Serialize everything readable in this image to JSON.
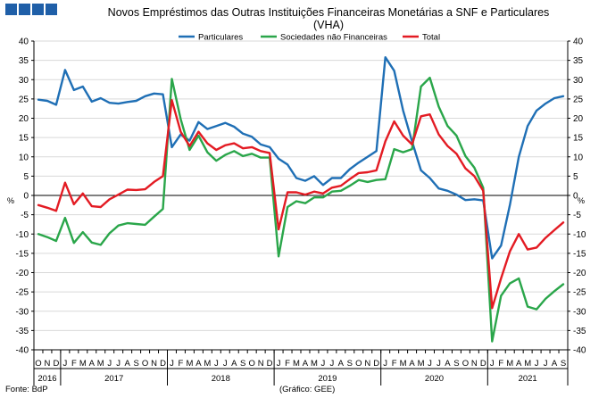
{
  "header_blocks": [
    "",
    "",
    "",
    ""
  ],
  "title_line1": "Novos Empréstimos das Outras Instituições Financeiras Monetárias a SNF e Particulares",
  "title_line2": "(VHA)",
  "footer": {
    "source": "Fonte: BdP",
    "credit": "(Gráfico: GEE)"
  },
  "colors": {
    "header": "#1f5fa8",
    "particulares": "#1f6fb5",
    "snf": "#2aa64a",
    "total": "#e31b23",
    "grid": "#d9d9d9"
  },
  "chart_data": {
    "type": "line",
    "title": "Novos Empréstimos das Outras Instituições Financeiras Monetárias a SNF e Particulares (VHA)",
    "ylabel_left": "%",
    "ylabel_right": "%",
    "ylim": [
      -40,
      40
    ],
    "yticks": [
      -40,
      -35,
      -30,
      -25,
      -20,
      -15,
      -10,
      -5,
      0,
      5,
      10,
      15,
      20,
      25,
      30,
      35,
      40
    ],
    "legend_position": "top-center",
    "month_labels": [
      "O",
      "N",
      "D",
      "J",
      "F",
      "M",
      "A",
      "M",
      "J",
      "J",
      "A",
      "S",
      "O",
      "N",
      "D",
      "J",
      "F",
      "M",
      "A",
      "M",
      "J",
      "J",
      "A",
      "S",
      "O",
      "N",
      "D",
      "J",
      "F",
      "M",
      "A",
      "M",
      "J",
      "J",
      "A",
      "S",
      "O",
      "N",
      "D",
      "J",
      "F",
      "M",
      "A",
      "M",
      "J",
      "J",
      "A",
      "S",
      "O",
      "N",
      "D",
      "J",
      "F",
      "M",
      "A",
      "M",
      "J",
      "J",
      "A",
      "S"
    ],
    "years": [
      {
        "label": "2016",
        "start": 0,
        "end": 3
      },
      {
        "label": "2017",
        "start": 3,
        "end": 15
      },
      {
        "label": "2018",
        "start": 15,
        "end": 27
      },
      {
        "label": "2019",
        "start": 27,
        "end": 39
      },
      {
        "label": "2020",
        "start": 39,
        "end": 51
      },
      {
        "label": "2021",
        "start": 51,
        "end": 60
      }
    ],
    "series": [
      {
        "name": "Particulares",
        "values": [
          24.8,
          24.5,
          23.5,
          32.5,
          27.3,
          28.2,
          24.3,
          25.2,
          24.0,
          23.8,
          24.2,
          24.5,
          25.7,
          26.4,
          26.2,
          12.5,
          15.8,
          14.2,
          19.0,
          17.2,
          18.0,
          18.8,
          17.8,
          16.0,
          15.2,
          13.2,
          12.5,
          9.5,
          8.0,
          4.5,
          3.8,
          5.0,
          2.7,
          4.5,
          4.5,
          6.8,
          8.5,
          10.0,
          11.5,
          35.8,
          32.3,
          22.0,
          14.0,
          6.5,
          4.5,
          1.8,
          1.2,
          0.2,
          -1.2,
          -1.0,
          -1.3,
          -16.3,
          -13.0,
          -2.5,
          10.0,
          18.0,
          22.0,
          23.8,
          25.2,
          25.7
        ]
      },
      {
        "name": "Sociedades não Financeiras",
        "values": [
          -10.0,
          -10.8,
          -11.8,
          -5.8,
          -12.3,
          -9.5,
          -12.2,
          -12.8,
          -9.8,
          -7.8,
          -7.2,
          -7.4,
          -7.6,
          -5.5,
          -3.5,
          30.2,
          19.8,
          11.8,
          15.5,
          11.2,
          9.0,
          10.5,
          11.5,
          10.2,
          10.8,
          9.8,
          9.8,
          -15.8,
          -3.0,
          -1.5,
          -2.0,
          -0.5,
          -0.5,
          1.0,
          1.2,
          2.5,
          4.0,
          3.5,
          4.0,
          4.2,
          12.0,
          11.2,
          12.0,
          28.2,
          30.5,
          23.0,
          18.0,
          15.5,
          10.2,
          7.2,
          2.0,
          -37.8,
          -26.0,
          -22.8,
          -21.5,
          -28.8,
          -29.5,
          -26.8,
          -24.8,
          -23.0
        ]
      },
      {
        "name": "Total",
        "values": [
          -2.5,
          -3.2,
          -4.0,
          3.3,
          -2.3,
          0.5,
          -2.8,
          -3.0,
          -1.0,
          0.2,
          1.5,
          1.4,
          1.6,
          3.5,
          5.0,
          24.7,
          16.5,
          12.8,
          16.5,
          13.5,
          11.8,
          13.0,
          13.5,
          12.2,
          12.5,
          11.5,
          11.0,
          -8.8,
          0.8,
          0.8,
          0.2,
          1.0,
          0.5,
          2.0,
          2.5,
          4.2,
          5.8,
          6.0,
          6.5,
          14.0,
          19.2,
          15.5,
          13.2,
          20.5,
          21.0,
          15.8,
          12.8,
          10.8,
          7.0,
          5.0,
          1.2,
          -29.2,
          -21.5,
          -14.5,
          -10.0,
          -14.0,
          -13.5,
          -11.0,
          -9.0,
          -7.0
        ]
      }
    ]
  }
}
